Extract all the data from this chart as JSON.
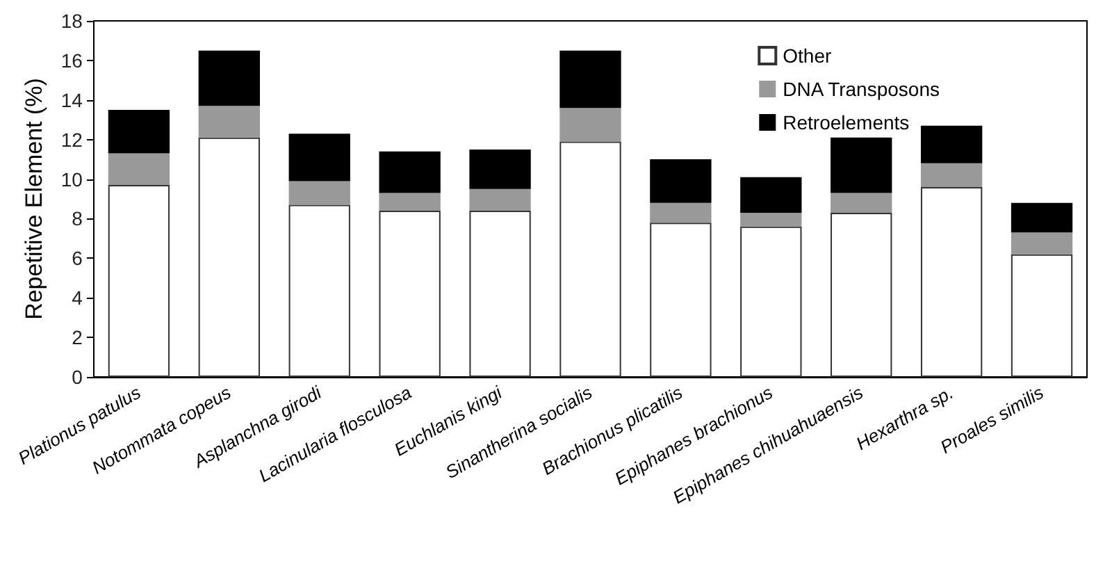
{
  "chart_data": {
    "type": "bar",
    "stacked": true,
    "ylabel": "Repetitive Element (%)",
    "categories": [
      "Plationus patulus",
      "Notommata copeus",
      "Asplanchna girodi",
      "Lacinularia flosculosa",
      "Euchlanis kingi",
      "Sinantherina socialis",
      "Brachionus plicatilis",
      "Epiphanes brachionus",
      "Epiphanes chihuahuaensis",
      "Hexarthra sp.",
      "Proales similis"
    ],
    "series": [
      {
        "name": "Other",
        "color": "#ffffff",
        "values": [
          9.7,
          12.1,
          8.7,
          8.4,
          8.4,
          11.9,
          7.8,
          7.6,
          8.3,
          9.6,
          6.2
        ]
      },
      {
        "name": "DNA Transposons",
        "color": "#999999",
        "values": [
          1.6,
          1.6,
          1.2,
          0.9,
          1.1,
          1.7,
          1.0,
          0.7,
          1.0,
          1.2,
          1.1
        ]
      },
      {
        "name": "Retroelements",
        "color": "#000000",
        "values": [
          2.2,
          2.8,
          2.4,
          2.1,
          2.0,
          2.9,
          2.2,
          1.8,
          2.8,
          1.9,
          1.5
        ]
      }
    ],
    "ylim": [
      0,
      18
    ],
    "yticks": [
      0,
      2,
      4,
      6,
      8,
      10,
      12,
      14,
      16,
      18
    ],
    "grid": false,
    "legend": "top right"
  }
}
